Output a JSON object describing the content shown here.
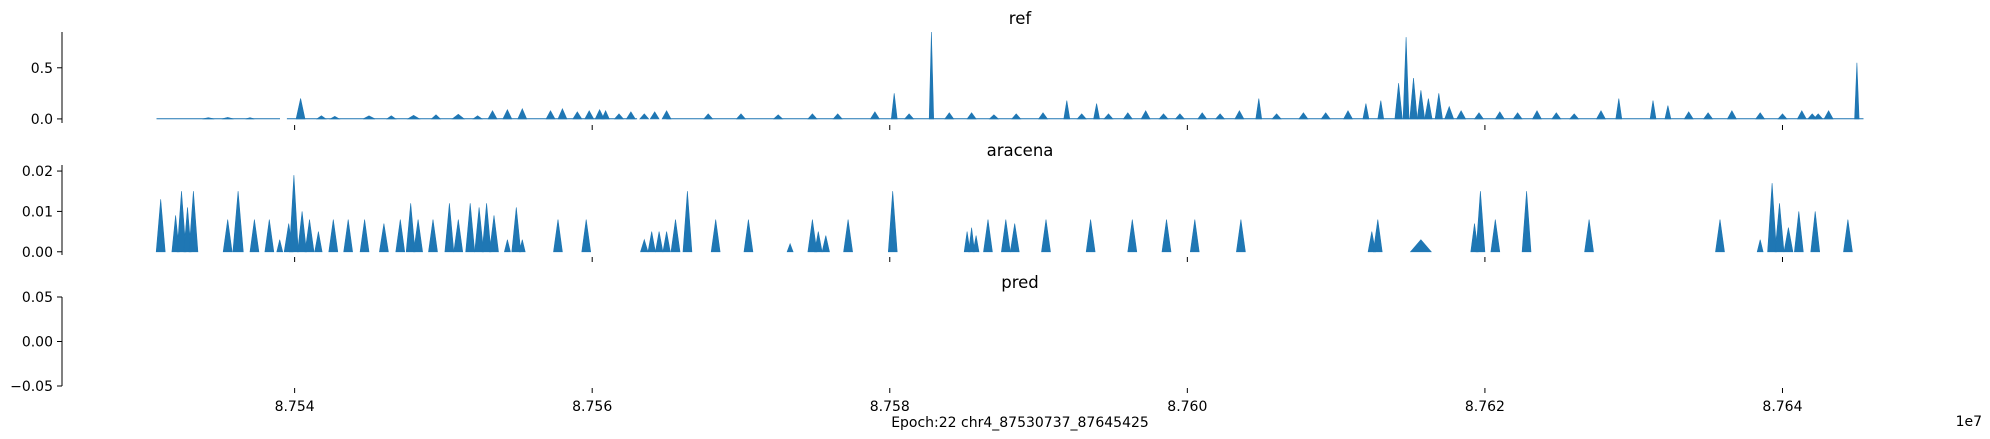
{
  "chart_data": {
    "type": "area",
    "xlabel": "Epoch:22 chr4_87530737_87645425",
    "x_offset_text": "1e7",
    "xlim": [
      87530737,
      87645425
    ],
    "x_ticks": [
      87540000,
      87560000,
      87580000,
      87600000,
      87620000,
      87640000
    ],
    "x_tick_labels": [
      "8.754",
      "8.756",
      "8.758",
      "8.760",
      "8.762",
      "8.764"
    ],
    "color": "#1f77b4",
    "panels": [
      {
        "title": "ref",
        "ylim": [
          -0.04,
          0.85
        ],
        "y_ticks": [
          0.0,
          0.5
        ],
        "y_tick_labels": [
          "0.0",
          "0.5"
        ],
        "baseline": 0.003,
        "segments": [
          [
            87530737,
            87539000
          ],
          [
            87539500,
            87563000
          ],
          [
            87565000,
            87645425
          ]
        ],
        "peaks": [
          [
            87534200,
            0.012,
            400
          ],
          [
            87535500,
            0.015,
            400
          ],
          [
            87537000,
            0.012,
            300
          ],
          [
            87540400,
            0.2,
            300
          ],
          [
            87541800,
            0.03,
            300
          ],
          [
            87542700,
            0.025,
            300
          ],
          [
            87545000,
            0.03,
            400
          ],
          [
            87546500,
            0.03,
            300
          ],
          [
            87548000,
            0.035,
            400
          ],
          [
            87549500,
            0.04,
            300
          ],
          [
            87551000,
            0.045,
            400
          ],
          [
            87552300,
            0.03,
            300
          ],
          [
            87553300,
            0.08,
            300
          ],
          [
            87554300,
            0.09,
            300
          ],
          [
            87555300,
            0.1,
            300
          ],
          [
            87557200,
            0.08,
            300
          ],
          [
            87558000,
            0.1,
            300
          ],
          [
            87559000,
            0.07,
            300
          ],
          [
            87559800,
            0.08,
            300
          ],
          [
            87560500,
            0.09,
            300
          ],
          [
            87560900,
            0.08,
            250
          ],
          [
            87561800,
            0.05,
            300
          ],
          [
            87562600,
            0.07,
            300
          ],
          [
            87563500,
            0.05,
            300
          ],
          [
            87564200,
            0.07,
            300
          ],
          [
            87565000,
            0.08,
            300
          ],
          [
            87567800,
            0.05,
            300
          ],
          [
            87570000,
            0.05,
            300
          ],
          [
            87572500,
            0.04,
            300
          ],
          [
            87574800,
            0.05,
            300
          ],
          [
            87576500,
            0.05,
            300
          ],
          [
            87579000,
            0.07,
            300
          ],
          [
            87580300,
            0.25,
            200
          ],
          [
            87581300,
            0.05,
            300
          ],
          [
            87582800,
            0.85,
            150
          ],
          [
            87584000,
            0.06,
            300
          ],
          [
            87585500,
            0.06,
            300
          ],
          [
            87587000,
            0.04,
            300
          ],
          [
            87588500,
            0.05,
            300
          ],
          [
            87590300,
            0.06,
            300
          ],
          [
            87591900,
            0.18,
            200
          ],
          [
            87592900,
            0.05,
            300
          ],
          [
            87593900,
            0.15,
            200
          ],
          [
            87594700,
            0.05,
            300
          ],
          [
            87596000,
            0.06,
            300
          ],
          [
            87597200,
            0.08,
            300
          ],
          [
            87598400,
            0.05,
            300
          ],
          [
            87599500,
            0.05,
            300
          ],
          [
            87601000,
            0.06,
            300
          ],
          [
            87602200,
            0.05,
            300
          ],
          [
            87603500,
            0.08,
            300
          ],
          [
            87604800,
            0.2,
            200
          ],
          [
            87606000,
            0.05,
            300
          ],
          [
            87607800,
            0.06,
            300
          ],
          [
            87609300,
            0.06,
            300
          ],
          [
            87610800,
            0.08,
            300
          ],
          [
            87612000,
            0.15,
            200
          ],
          [
            87613000,
            0.18,
            200
          ],
          [
            87614200,
            0.35,
            250
          ],
          [
            87614700,
            0.8,
            200
          ],
          [
            87615200,
            0.4,
            250
          ],
          [
            87615700,
            0.28,
            250
          ],
          [
            87616200,
            0.2,
            250
          ],
          [
            87616900,
            0.25,
            250
          ],
          [
            87617600,
            0.12,
            300
          ],
          [
            87618400,
            0.08,
            300
          ],
          [
            87619600,
            0.06,
            300
          ],
          [
            87621000,
            0.07,
            300
          ],
          [
            87622200,
            0.06,
            300
          ],
          [
            87623500,
            0.08,
            300
          ],
          [
            87624800,
            0.06,
            300
          ],
          [
            87626000,
            0.05,
            300
          ],
          [
            87627800,
            0.08,
            300
          ],
          [
            87629000,
            0.2,
            200
          ],
          [
            87631300,
            0.18,
            200
          ],
          [
            87632300,
            0.13,
            200
          ],
          [
            87633700,
            0.07,
            300
          ],
          [
            87635000,
            0.06,
            300
          ],
          [
            87636600,
            0.08,
            300
          ],
          [
            87638500,
            0.06,
            300
          ],
          [
            87640000,
            0.05,
            300
          ],
          [
            87641300,
            0.08,
            300
          ],
          [
            87642000,
            0.05,
            300
          ],
          [
            87642400,
            0.05,
            300
          ],
          [
            87643100,
            0.08,
            300
          ],
          [
            87645000,
            0.55,
            150
          ]
        ]
      },
      {
        "title": "aracena",
        "ylim": [
          -0.0008,
          0.0215
        ],
        "y_ticks": [
          0.0,
          0.01,
          0.02
        ],
        "y_tick_labels": [
          "0.00",
          "0.01",
          "0.02"
        ],
        "baseline": 0,
        "segments": [],
        "peaks": [
          [
            87531000,
            0.013,
            300
          ],
          [
            87532000,
            0.009,
            250
          ],
          [
            87532400,
            0.015,
            300
          ],
          [
            87532800,
            0.011,
            250
          ],
          [
            87533200,
            0.015,
            300
          ],
          [
            87535500,
            0.008,
            300
          ],
          [
            87536200,
            0.015,
            350
          ],
          [
            87537300,
            0.008,
            300
          ],
          [
            87538300,
            0.008,
            300
          ],
          [
            87539000,
            0.003,
            200
          ],
          [
            87539600,
            0.007,
            300
          ],
          [
            87539950,
            0.019,
            300
          ],
          [
            87540500,
            0.01,
            300
          ],
          [
            87541000,
            0.008,
            300
          ],
          [
            87541600,
            0.005,
            250
          ],
          [
            87542600,
            0.008,
            300
          ],
          [
            87543600,
            0.008,
            300
          ],
          [
            87544700,
            0.008,
            300
          ],
          [
            87546000,
            0.007,
            300
          ],
          [
            87547100,
            0.008,
            300
          ],
          [
            87547800,
            0.012,
            300
          ],
          [
            87548300,
            0.008,
            300
          ],
          [
            87549300,
            0.008,
            300
          ],
          [
            87550400,
            0.012,
            300
          ],
          [
            87551000,
            0.008,
            300
          ],
          [
            87551800,
            0.012,
            300
          ],
          [
            87552400,
            0.011,
            300
          ],
          [
            87552900,
            0.012,
            300
          ],
          [
            87553400,
            0.009,
            300
          ],
          [
            87554300,
            0.003,
            200
          ],
          [
            87554900,
            0.011,
            300
          ],
          [
            87555300,
            0.003,
            200
          ],
          [
            87557700,
            0.008,
            300
          ],
          [
            87559600,
            0.008,
            300
          ],
          [
            87563500,
            0.003,
            250
          ],
          [
            87564000,
            0.005,
            250
          ],
          [
            87564500,
            0.005,
            250
          ],
          [
            87565000,
            0.005,
            250
          ],
          [
            87565600,
            0.008,
            300
          ],
          [
            87566400,
            0.015,
            300
          ],
          [
            87568300,
            0.008,
            300
          ],
          [
            87570500,
            0.008,
            300
          ],
          [
            87573300,
            0.002,
            200
          ],
          [
            87574800,
            0.008,
            300
          ],
          [
            87575200,
            0.005,
            250
          ],
          [
            87575700,
            0.004,
            250
          ],
          [
            87577200,
            0.008,
            300
          ],
          [
            87580200,
            0.015,
            300
          ],
          [
            87585200,
            0.005,
            200
          ],
          [
            87585500,
            0.006,
            200
          ],
          [
            87585800,
            0.004,
            200
          ],
          [
            87586600,
            0.008,
            300
          ],
          [
            87587800,
            0.008,
            300
          ],
          [
            87588400,
            0.007,
            300
          ],
          [
            87590500,
            0.008,
            300
          ],
          [
            87593500,
            0.008,
            300
          ],
          [
            87596300,
            0.008,
            300
          ],
          [
            87598600,
            0.008,
            300
          ],
          [
            87600500,
            0.008,
            300
          ],
          [
            87603600,
            0.008,
            300
          ],
          [
            87612400,
            0.005,
            250
          ],
          [
            87612800,
            0.008,
            300
          ],
          [
            87615700,
            0.003,
            700
          ],
          [
            87619300,
            0.007,
            250
          ],
          [
            87619700,
            0.015,
            300
          ],
          [
            87620700,
            0.008,
            300
          ],
          [
            87622800,
            0.015,
            300
          ],
          [
            87627000,
            0.008,
            300
          ],
          [
            87635800,
            0.008,
            300
          ],
          [
            87638500,
            0.003,
            200
          ],
          [
            87639300,
            0.017,
            300
          ],
          [
            87639800,
            0.012,
            300
          ],
          [
            87640400,
            0.006,
            300
          ],
          [
            87641100,
            0.01,
            300
          ],
          [
            87642200,
            0.01,
            300
          ],
          [
            87644400,
            0.008,
            300
          ]
        ]
      },
      {
        "title": "pred",
        "ylim": [
          -0.05,
          0.05
        ],
        "y_ticks": [
          -0.05,
          0.0,
          0.05
        ],
        "y_tick_labels": [
          "−0.05",
          "0.00",
          "0.05"
        ],
        "baseline": 0,
        "segments": [],
        "peaks": []
      }
    ]
  }
}
